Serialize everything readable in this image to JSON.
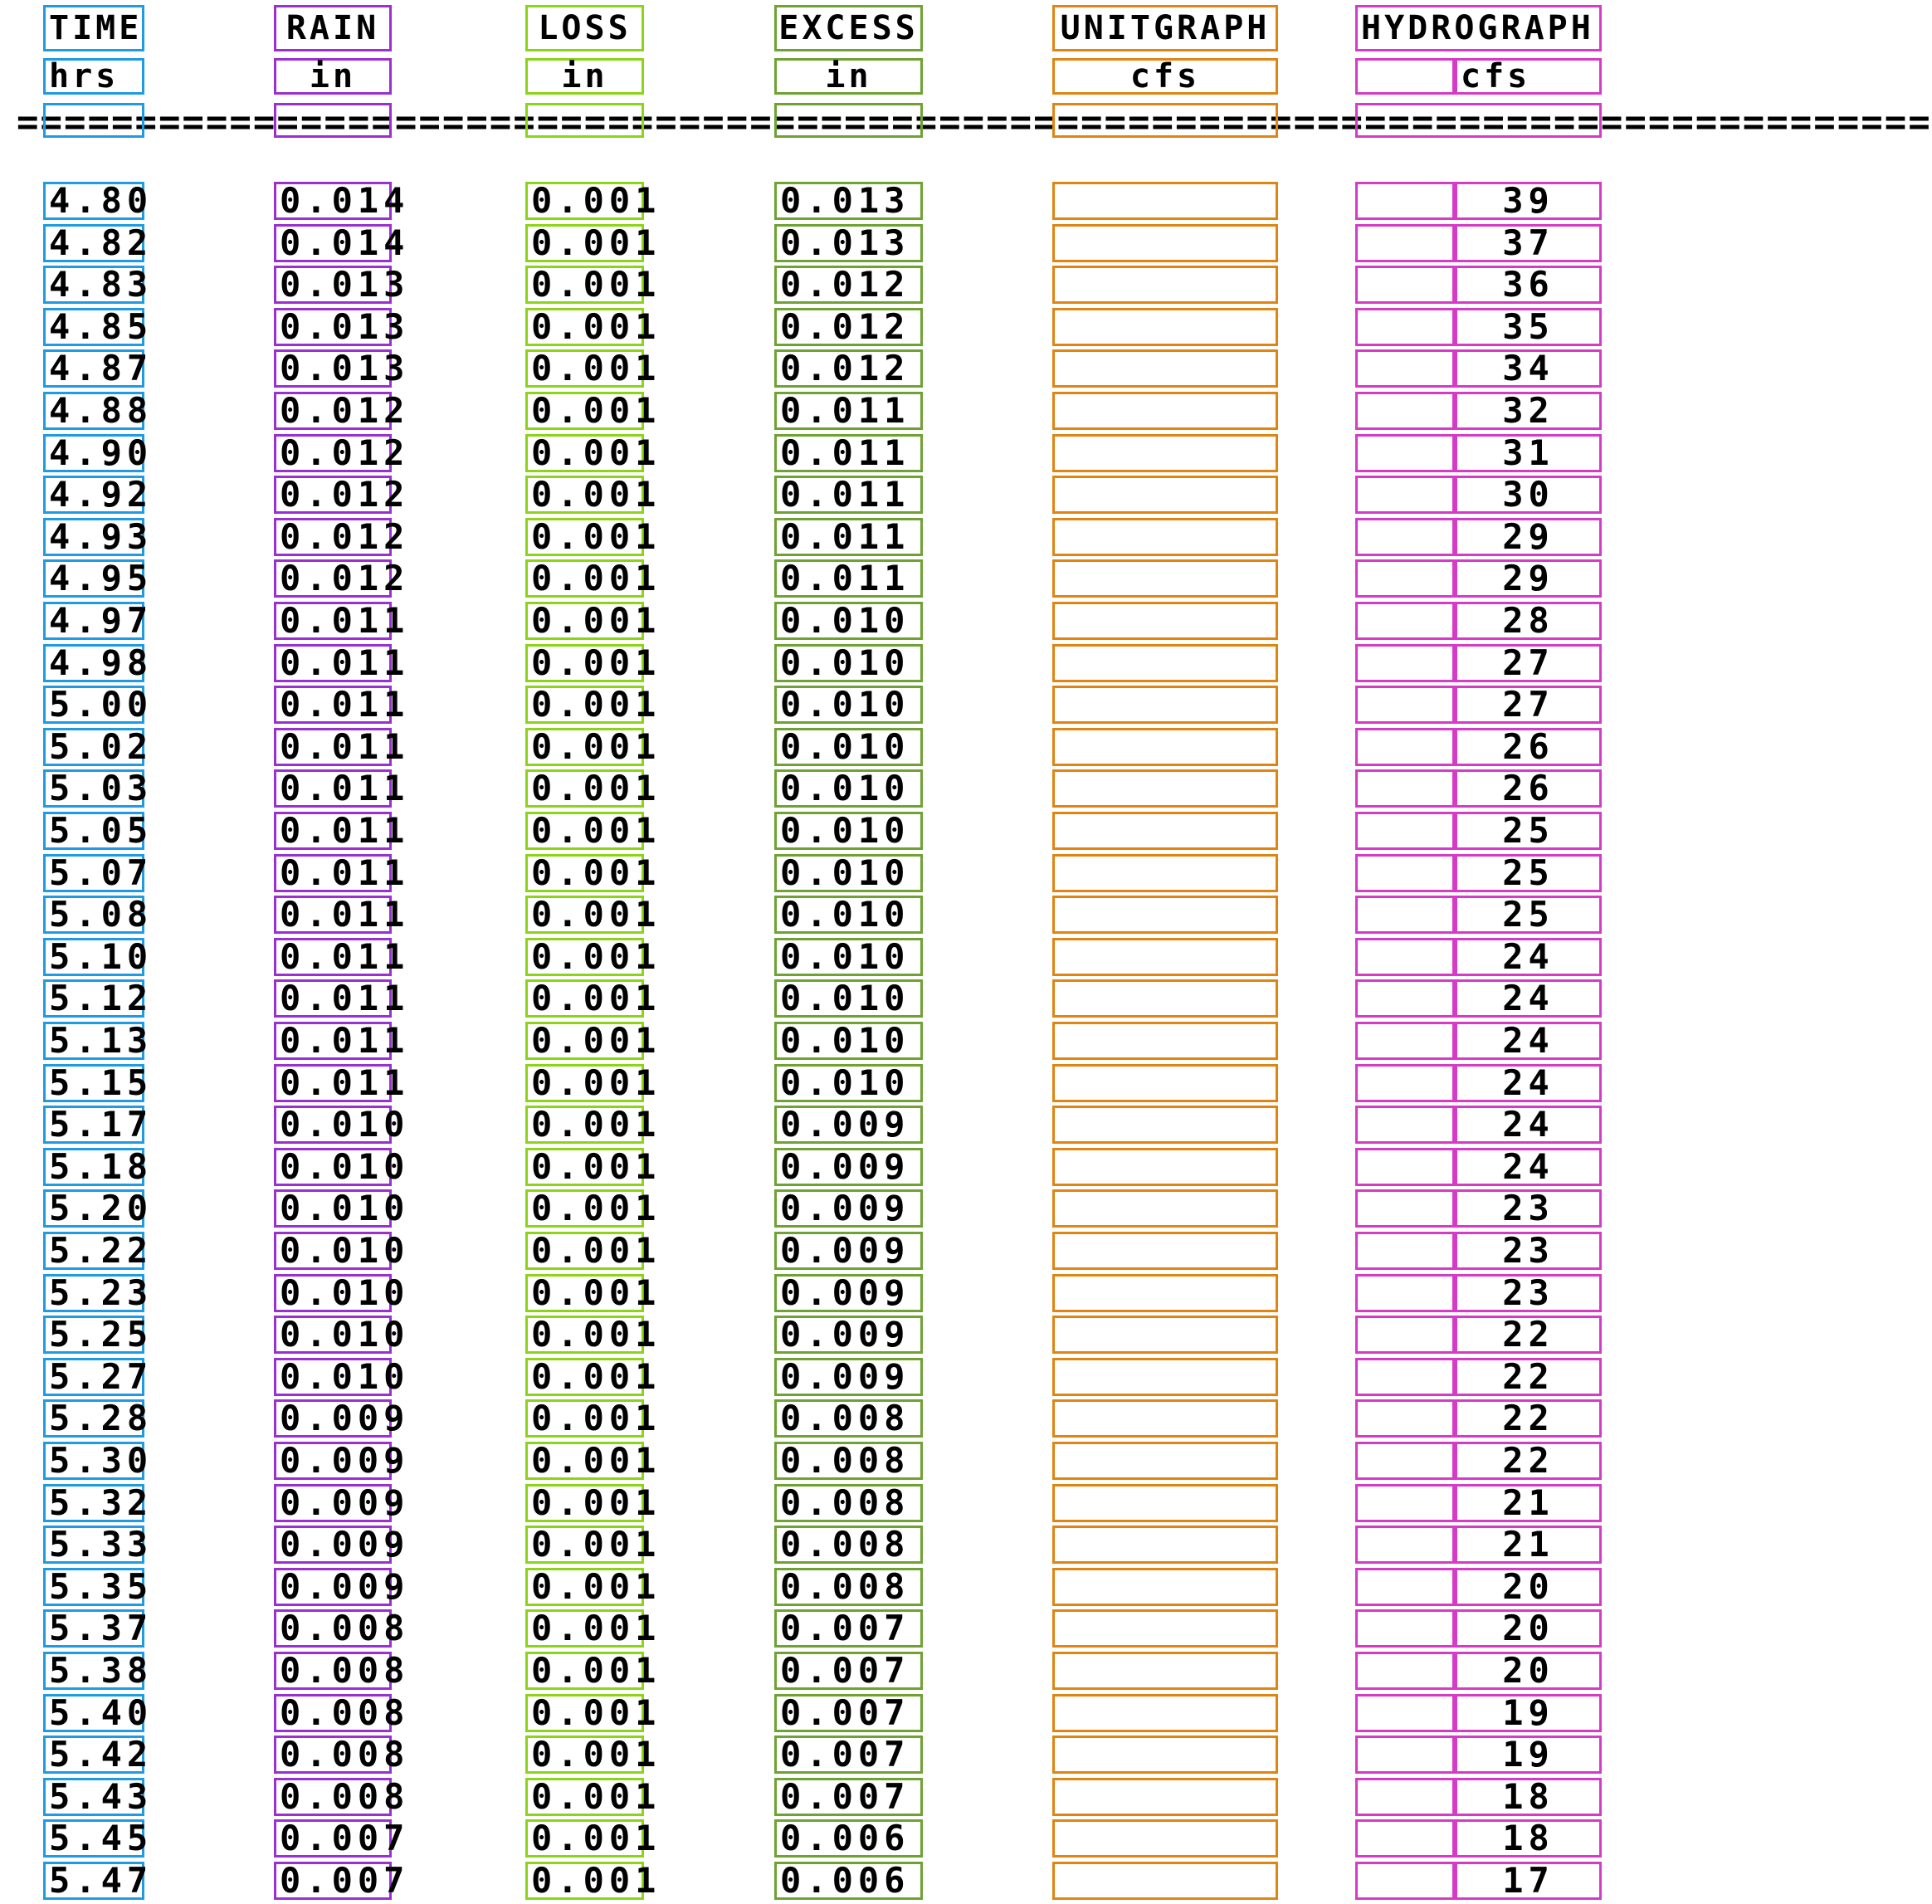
{
  "headers": {
    "titles": [
      "TIME",
      "RAIN",
      "LOSS",
      "EXCESS",
      "UNITGRAPH",
      "HYDROGRAPH"
    ],
    "units": [
      "hrs",
      "in",
      "in",
      "in",
      "cfs",
      "cfs"
    ]
  },
  "separator": "=================================================================================",
  "rows": [
    {
      "time": "4.80",
      "rain": "0.014",
      "loss": "0.001",
      "excess": "0.013",
      "unitgraph": "",
      "hydrograph": "39"
    },
    {
      "time": "4.82",
      "rain": "0.014",
      "loss": "0.001",
      "excess": "0.013",
      "unitgraph": "",
      "hydrograph": "37"
    },
    {
      "time": "4.83",
      "rain": "0.013",
      "loss": "0.001",
      "excess": "0.012",
      "unitgraph": "",
      "hydrograph": "36"
    },
    {
      "time": "4.85",
      "rain": "0.013",
      "loss": "0.001",
      "excess": "0.012",
      "unitgraph": "",
      "hydrograph": "35"
    },
    {
      "time": "4.87",
      "rain": "0.013",
      "loss": "0.001",
      "excess": "0.012",
      "unitgraph": "",
      "hydrograph": "34"
    },
    {
      "time": "4.88",
      "rain": "0.012",
      "loss": "0.001",
      "excess": "0.011",
      "unitgraph": "",
      "hydrograph": "32"
    },
    {
      "time": "4.90",
      "rain": "0.012",
      "loss": "0.001",
      "excess": "0.011",
      "unitgraph": "",
      "hydrograph": "31"
    },
    {
      "time": "4.92",
      "rain": "0.012",
      "loss": "0.001",
      "excess": "0.011",
      "unitgraph": "",
      "hydrograph": "30"
    },
    {
      "time": "4.93",
      "rain": "0.012",
      "loss": "0.001",
      "excess": "0.011",
      "unitgraph": "",
      "hydrograph": "29"
    },
    {
      "time": "4.95",
      "rain": "0.012",
      "loss": "0.001",
      "excess": "0.011",
      "unitgraph": "",
      "hydrograph": "29"
    },
    {
      "time": "4.97",
      "rain": "0.011",
      "loss": "0.001",
      "excess": "0.010",
      "unitgraph": "",
      "hydrograph": "28"
    },
    {
      "time": "4.98",
      "rain": "0.011",
      "loss": "0.001",
      "excess": "0.010",
      "unitgraph": "",
      "hydrograph": "27"
    },
    {
      "time": "5.00",
      "rain": "0.011",
      "loss": "0.001",
      "excess": "0.010",
      "unitgraph": "",
      "hydrograph": "27"
    },
    {
      "time": "5.02",
      "rain": "0.011",
      "loss": "0.001",
      "excess": "0.010",
      "unitgraph": "",
      "hydrograph": "26"
    },
    {
      "time": "5.03",
      "rain": "0.011",
      "loss": "0.001",
      "excess": "0.010",
      "unitgraph": "",
      "hydrograph": "26"
    },
    {
      "time": "5.05",
      "rain": "0.011",
      "loss": "0.001",
      "excess": "0.010",
      "unitgraph": "",
      "hydrograph": "25"
    },
    {
      "time": "5.07",
      "rain": "0.011",
      "loss": "0.001",
      "excess": "0.010",
      "unitgraph": "",
      "hydrograph": "25"
    },
    {
      "time": "5.08",
      "rain": "0.011",
      "loss": "0.001",
      "excess": "0.010",
      "unitgraph": "",
      "hydrograph": "25"
    },
    {
      "time": "5.10",
      "rain": "0.011",
      "loss": "0.001",
      "excess": "0.010",
      "unitgraph": "",
      "hydrograph": "24"
    },
    {
      "time": "5.12",
      "rain": "0.011",
      "loss": "0.001",
      "excess": "0.010",
      "unitgraph": "",
      "hydrograph": "24"
    },
    {
      "time": "5.13",
      "rain": "0.011",
      "loss": "0.001",
      "excess": "0.010",
      "unitgraph": "",
      "hydrograph": "24"
    },
    {
      "time": "5.15",
      "rain": "0.011",
      "loss": "0.001",
      "excess": "0.010",
      "unitgraph": "",
      "hydrograph": "24"
    },
    {
      "time": "5.17",
      "rain": "0.010",
      "loss": "0.001",
      "excess": "0.009",
      "unitgraph": "",
      "hydrograph": "24"
    },
    {
      "time": "5.18",
      "rain": "0.010",
      "loss": "0.001",
      "excess": "0.009",
      "unitgraph": "",
      "hydrograph": "24"
    },
    {
      "time": "5.20",
      "rain": "0.010",
      "loss": "0.001",
      "excess": "0.009",
      "unitgraph": "",
      "hydrograph": "23"
    },
    {
      "time": "5.22",
      "rain": "0.010",
      "loss": "0.001",
      "excess": "0.009",
      "unitgraph": "",
      "hydrograph": "23"
    },
    {
      "time": "5.23",
      "rain": "0.010",
      "loss": "0.001",
      "excess": "0.009",
      "unitgraph": "",
      "hydrograph": "23"
    },
    {
      "time": "5.25",
      "rain": "0.010",
      "loss": "0.001",
      "excess": "0.009",
      "unitgraph": "",
      "hydrograph": "22"
    },
    {
      "time": "5.27",
      "rain": "0.010",
      "loss": "0.001",
      "excess": "0.009",
      "unitgraph": "",
      "hydrograph": "22"
    },
    {
      "time": "5.28",
      "rain": "0.009",
      "loss": "0.001",
      "excess": "0.008",
      "unitgraph": "",
      "hydrograph": "22"
    },
    {
      "time": "5.30",
      "rain": "0.009",
      "loss": "0.001",
      "excess": "0.008",
      "unitgraph": "",
      "hydrograph": "22"
    },
    {
      "time": "5.32",
      "rain": "0.009",
      "loss": "0.001",
      "excess": "0.008",
      "unitgraph": "",
      "hydrograph": "21"
    },
    {
      "time": "5.33",
      "rain": "0.009",
      "loss": "0.001",
      "excess": "0.008",
      "unitgraph": "",
      "hydrograph": "21"
    },
    {
      "time": "5.35",
      "rain": "0.009",
      "loss": "0.001",
      "excess": "0.008",
      "unitgraph": "",
      "hydrograph": "20"
    },
    {
      "time": "5.37",
      "rain": "0.008",
      "loss": "0.001",
      "excess": "0.007",
      "unitgraph": "",
      "hydrograph": "20"
    },
    {
      "time": "5.38",
      "rain": "0.008",
      "loss": "0.001",
      "excess": "0.007",
      "unitgraph": "",
      "hydrograph": "20"
    },
    {
      "time": "5.40",
      "rain": "0.008",
      "loss": "0.001",
      "excess": "0.007",
      "unitgraph": "",
      "hydrograph": "19"
    },
    {
      "time": "5.42",
      "rain": "0.008",
      "loss": "0.001",
      "excess": "0.007",
      "unitgraph": "",
      "hydrograph": "19"
    },
    {
      "time": "5.43",
      "rain": "0.008",
      "loss": "0.001",
      "excess": "0.007",
      "unitgraph": "",
      "hydrograph": "18"
    },
    {
      "time": "5.45",
      "rain": "0.007",
      "loss": "0.001",
      "excess": "0.006",
      "unitgraph": "",
      "hydrograph": "18"
    },
    {
      "time": "5.47",
      "rain": "0.007",
      "loss": "0.001",
      "excess": "0.006",
      "unitgraph": "",
      "hydrograph": "17"
    }
  ]
}
